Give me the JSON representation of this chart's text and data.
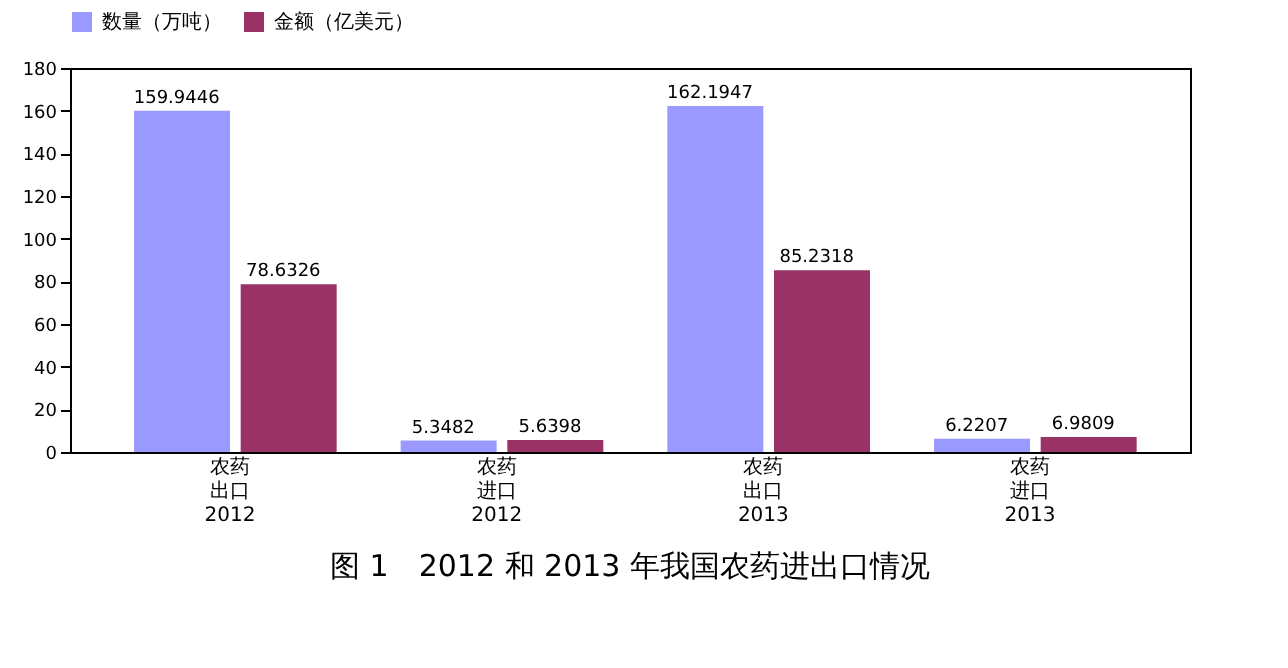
{
  "chart_data": {
    "type": "bar",
    "title": "图 1　2012 和 2013 年我国农药进出口情况",
    "categories": [
      "农药出口2012",
      "农药进口2012",
      "农药出口2013",
      "农药进口2013"
    ],
    "series": [
      {
        "name": "数量（万吨）",
        "color": "#9999ff",
        "values": [
          159.9446,
          5.3482,
          162.1947,
          6.2207
        ]
      },
      {
        "name": "金额（亿美元）",
        "color": "#993366",
        "values": [
          78.6326,
          5.6398,
          85.2318,
          6.9809
        ]
      }
    ],
    "ylim": [
      0,
      180
    ],
    "yticks": [
      0,
      20,
      40,
      60,
      80,
      100,
      120,
      140,
      160,
      180
    ],
    "data_labels": true,
    "legend": "top",
    "grid": false
  }
}
